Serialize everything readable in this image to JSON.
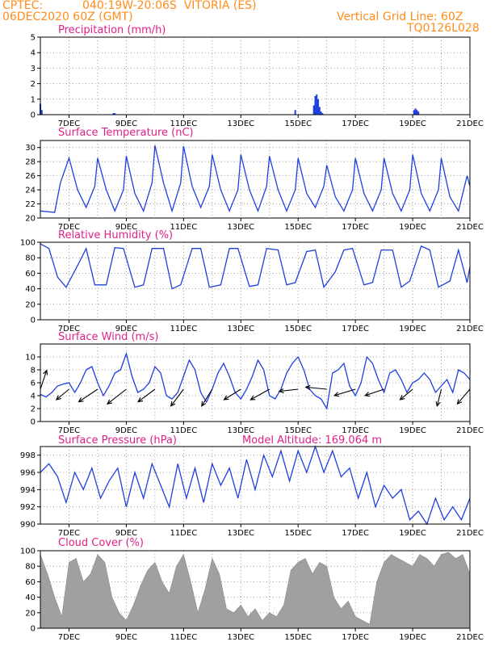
{
  "header": {
    "source": "CPTEC:",
    "location": "040:19W-20:06S  VITORIA (ES)",
    "run": "06DEC2020 60Z (GMT)",
    "grid_note": "Vertical Grid Line: 60Z",
    "code": "TQ0126L028"
  },
  "colors": {
    "header": "#ff8c1a",
    "title": "#e0208a",
    "line": "#1f3fe0",
    "cloud": "#a0a0a0",
    "wind_arrow": "#000000"
  },
  "x_tick_labels": [
    "7DEC",
    "9DEC",
    "11DEC",
    "13DEC",
    "15DEC",
    "17DEC",
    "19DEC",
    "21DEC"
  ],
  "chart_data": [
    {
      "type": "bar",
      "title": "Precipitation (mm/h)",
      "x_range_days": [
        6,
        21
      ],
      "ylim": [
        0,
        5
      ],
      "yticks": [
        0,
        1,
        2,
        3,
        4,
        5
      ],
      "x": [
        6.0,
        6.05,
        8.55,
        8.6,
        14.9,
        15.55,
        15.6,
        15.65,
        15.7,
        15.75,
        15.8,
        15.85,
        19.05,
        19.1,
        19.15,
        19.2
      ],
      "values": [
        0.7,
        0.3,
        0.1,
        0.1,
        0.3,
        0.6,
        1.2,
        1.3,
        1.0,
        0.5,
        0.2,
        0.1,
        0.3,
        0.4,
        0.3,
        0.2
      ]
    },
    {
      "type": "line",
      "title": "Surface Temperature (nC)",
      "ylim": [
        20,
        31
      ],
      "yticks": [
        20,
        22,
        24,
        26,
        28,
        30
      ],
      "x": [
        6.0,
        6.5,
        6.7,
        7.0,
        7.3,
        7.6,
        7.9,
        8.0,
        8.3,
        8.6,
        8.9,
        9.0,
        9.3,
        9.6,
        9.9,
        10.0,
        10.3,
        10.6,
        10.9,
        11.0,
        11.3,
        11.6,
        11.9,
        12.0,
        12.3,
        12.6,
        12.9,
        13.0,
        13.3,
        13.6,
        13.9,
        14.0,
        14.3,
        14.6,
        14.9,
        15.0,
        15.3,
        15.6,
        15.9,
        16.0,
        16.3,
        16.6,
        16.9,
        17.0,
        17.3,
        17.6,
        17.9,
        18.0,
        18.3,
        18.6,
        18.9,
        19.0,
        19.3,
        19.6,
        19.9,
        20.0,
        20.3,
        20.6,
        20.9,
        21.0
      ],
      "values": [
        21.0,
        20.8,
        25.0,
        28.5,
        24.0,
        21.5,
        24.5,
        28.5,
        24.0,
        21.0,
        24.0,
        28.8,
        23.5,
        21.0,
        25.0,
        30.3,
        25.0,
        21.0,
        25.0,
        30.2,
        24.5,
        21.5,
        24.5,
        29.0,
        24.0,
        21.0,
        24.0,
        29.0,
        24.0,
        21.0,
        24.5,
        28.8,
        24.0,
        21.0,
        24.0,
        28.5,
        23.5,
        21.5,
        24.5,
        27.5,
        23.0,
        21.0,
        24.0,
        28.5,
        23.5,
        21.0,
        24.0,
        28.5,
        23.5,
        21.0,
        24.0,
        29.0,
        23.5,
        21.0,
        24.0,
        28.5,
        23.0,
        21.0,
        26.0,
        24.5
      ]
    },
    {
      "type": "line",
      "title": "Relative Humidity (%)",
      "ylim": [
        0,
        100
      ],
      "yticks": [
        0,
        20,
        40,
        60,
        80,
        100
      ],
      "x": [
        6.0,
        6.3,
        6.6,
        6.9,
        7.3,
        7.6,
        7.9,
        8.3,
        8.6,
        8.9,
        9.3,
        9.6,
        9.9,
        10.3,
        10.6,
        10.9,
        11.3,
        11.6,
        11.9,
        12.3,
        12.6,
        12.9,
        13.3,
        13.6,
        13.9,
        14.3,
        14.6,
        14.9,
        15.3,
        15.6,
        15.9,
        16.3,
        16.6,
        16.9,
        17.3,
        17.6,
        17.9,
        18.3,
        18.6,
        18.9,
        19.3,
        19.6,
        19.9,
        20.3,
        20.6,
        20.9,
        21.0
      ],
      "values": [
        98,
        92,
        55,
        42,
        70,
        92,
        45,
        45,
        93,
        92,
        42,
        45,
        92,
        92,
        40,
        45,
        92,
        92,
        42,
        45,
        92,
        92,
        43,
        45,
        92,
        90,
        45,
        48,
        88,
        90,
        42,
        62,
        90,
        92,
        45,
        48,
        90,
        90,
        42,
        50,
        95,
        90,
        42,
        50,
        90,
        48,
        68
      ]
    },
    {
      "type": "line",
      "title": "Surface Wind (m/s)",
      "ylim": [
        0,
        12
      ],
      "yticks": [
        0,
        2,
        4,
        6,
        8,
        10
      ],
      "x": [
        6.0,
        6.2,
        6.4,
        6.6,
        6.8,
        7.0,
        7.2,
        7.4,
        7.6,
        7.8,
        8.0,
        8.2,
        8.4,
        8.6,
        8.8,
        9.0,
        9.2,
        9.4,
        9.6,
        9.8,
        10.0,
        10.2,
        10.4,
        10.6,
        10.8,
        11.0,
        11.2,
        11.4,
        11.6,
        11.8,
        12.0,
        12.2,
        12.4,
        12.6,
        12.8,
        13.0,
        13.2,
        13.4,
        13.6,
        13.8,
        14.0,
        14.2,
        14.4,
        14.6,
        14.8,
        15.0,
        15.2,
        15.4,
        15.6,
        15.8,
        16.0,
        16.2,
        16.4,
        16.6,
        16.8,
        17.0,
        17.2,
        17.4,
        17.6,
        17.8,
        18.0,
        18.2,
        18.4,
        18.6,
        18.8,
        19.0,
        19.2,
        19.4,
        19.6,
        19.8,
        20.0,
        20.2,
        20.4,
        20.6,
        20.8,
        21.0
      ],
      "values": [
        4.2,
        3.8,
        4.5,
        5.5,
        5.8,
        6.0,
        4.5,
        6.0,
        8.0,
        8.5,
        6.0,
        4.0,
        5.5,
        7.5,
        8.0,
        10.5,
        7.0,
        4.5,
        5.0,
        6.0,
        8.5,
        7.5,
        4.0,
        3.5,
        4.5,
        7.0,
        9.5,
        8.0,
        4.5,
        3.0,
        5.0,
        7.5,
        9.0,
        7.0,
        4.5,
        3.5,
        5.0,
        7.0,
        9.5,
        8.0,
        4.0,
        3.5,
        5.0,
        7.5,
        9.0,
        10.0,
        8.0,
        5.0,
        4.0,
        3.5,
        2.0,
        7.5,
        8.0,
        9.0,
        5.5,
        4.0,
        6.0,
        10.0,
        9.0,
        6.5,
        4.5,
        7.5,
        8.0,
        6.5,
        4.5,
        6.0,
        6.5,
        7.5,
        6.5,
        4.5,
        5.5,
        6.5,
        4.5,
        8.0,
        7.5,
        6.5
      ],
      "wind_arrows": [
        {
          "x": 6.0,
          "dx": 0.3,
          "dy": 0.9
        },
        {
          "x": 7.0,
          "dx": -0.6,
          "dy": -0.5
        },
        {
          "x": 8.0,
          "dx": -0.9,
          "dy": -0.6
        },
        {
          "x": 9.0,
          "dx": -0.9,
          "dy": -0.7
        },
        {
          "x": 10.0,
          "dx": -0.8,
          "dy": -0.6
        },
        {
          "x": 11.0,
          "dx": -0.6,
          "dy": -0.8
        },
        {
          "x": 12.0,
          "dx": -0.5,
          "dy": -0.8
        },
        {
          "x": 13.0,
          "dx": -0.8,
          "dy": -0.5
        },
        {
          "x": 14.0,
          "dx": -0.9,
          "dy": -0.5
        },
        {
          "x": 15.0,
          "dx": -0.9,
          "dy": -0.1
        },
        {
          "x": 16.0,
          "dx": -1.0,
          "dy": 0.1
        },
        {
          "x": 17.0,
          "dx": -1.0,
          "dy": -0.3
        },
        {
          "x": 18.0,
          "dx": -0.9,
          "dy": -0.3
        },
        {
          "x": 19.0,
          "dx": -0.6,
          "dy": -0.5
        },
        {
          "x": 20.0,
          "dx": -0.2,
          "dy": -0.8
        },
        {
          "x": 21.0,
          "dx": -0.6,
          "dy": -0.7
        }
      ]
    },
    {
      "type": "line",
      "title": "Surface Pressure (hPa)",
      "annotation": "Model Altitude: 169.064 m",
      "ylim": [
        990,
        999
      ],
      "yticks": [
        990,
        992,
        994,
        996,
        998
      ],
      "x": [
        6.0,
        6.3,
        6.6,
        6.9,
        7.2,
        7.5,
        7.8,
        8.1,
        8.4,
        8.7,
        9.0,
        9.3,
        9.6,
        9.9,
        10.2,
        10.5,
        10.8,
        11.1,
        11.4,
        11.7,
        12.0,
        12.3,
        12.6,
        12.9,
        13.2,
        13.5,
        13.8,
        14.1,
        14.4,
        14.7,
        15.0,
        15.3,
        15.6,
        15.9,
        16.2,
        16.5,
        16.8,
        17.1,
        17.4,
        17.7,
        18.0,
        18.3,
        18.6,
        18.9,
        19.2,
        19.5,
        19.8,
        20.1,
        20.4,
        20.7,
        21.0
      ],
      "values": [
        996.0,
        997.0,
        995.5,
        992.5,
        996.0,
        994.0,
        996.5,
        993.0,
        995.0,
        996.5,
        992.0,
        996.0,
        993.0,
        997.0,
        994.5,
        992.0,
        997.0,
        993.0,
        996.5,
        992.5,
        997.0,
        994.5,
        996.5,
        993.0,
        997.5,
        994.0,
        998.0,
        995.5,
        998.5,
        995.0,
        998.5,
        996.0,
        999.0,
        996.0,
        998.5,
        995.5,
        996.5,
        993.0,
        996.0,
        992.0,
        994.5,
        993.0,
        994.0,
        990.5,
        991.5,
        990.0,
        993.0,
        990.5,
        992.0,
        990.5,
        993.0
      ]
    },
    {
      "type": "area",
      "title": "Cloud Cover (%)",
      "ylim": [
        0,
        100
      ],
      "yticks": [
        0,
        20,
        40,
        60,
        80,
        100
      ],
      "x": [
        6.0,
        6.25,
        6.5,
        6.75,
        7.0,
        7.25,
        7.5,
        7.75,
        8.0,
        8.25,
        8.5,
        8.75,
        9.0,
        9.25,
        9.5,
        9.75,
        10.0,
        10.25,
        10.5,
        10.75,
        11.0,
        11.25,
        11.5,
        11.75,
        12.0,
        12.25,
        12.5,
        12.75,
        13.0,
        13.25,
        13.5,
        13.75,
        14.0,
        14.25,
        14.5,
        14.75,
        15.0,
        15.25,
        15.5,
        15.75,
        16.0,
        16.25,
        16.5,
        16.75,
        17.0,
        17.25,
        17.5,
        17.75,
        18.0,
        18.25,
        18.5,
        18.75,
        19.0,
        19.25,
        19.5,
        19.75,
        20.0,
        20.25,
        20.5,
        20.75,
        21.0
      ],
      "values": [
        95,
        70,
        40,
        15,
        85,
        90,
        60,
        70,
        95,
        85,
        40,
        20,
        10,
        30,
        55,
        75,
        85,
        60,
        45,
        80,
        95,
        60,
        20,
        50,
        90,
        70,
        25,
        20,
        30,
        15,
        25,
        10,
        20,
        15,
        30,
        75,
        85,
        90,
        70,
        85,
        80,
        40,
        25,
        35,
        15,
        10,
        5,
        60,
        85,
        95,
        90,
        85,
        80,
        95,
        90,
        80,
        95,
        98,
        90,
        95,
        70
      ]
    }
  ]
}
